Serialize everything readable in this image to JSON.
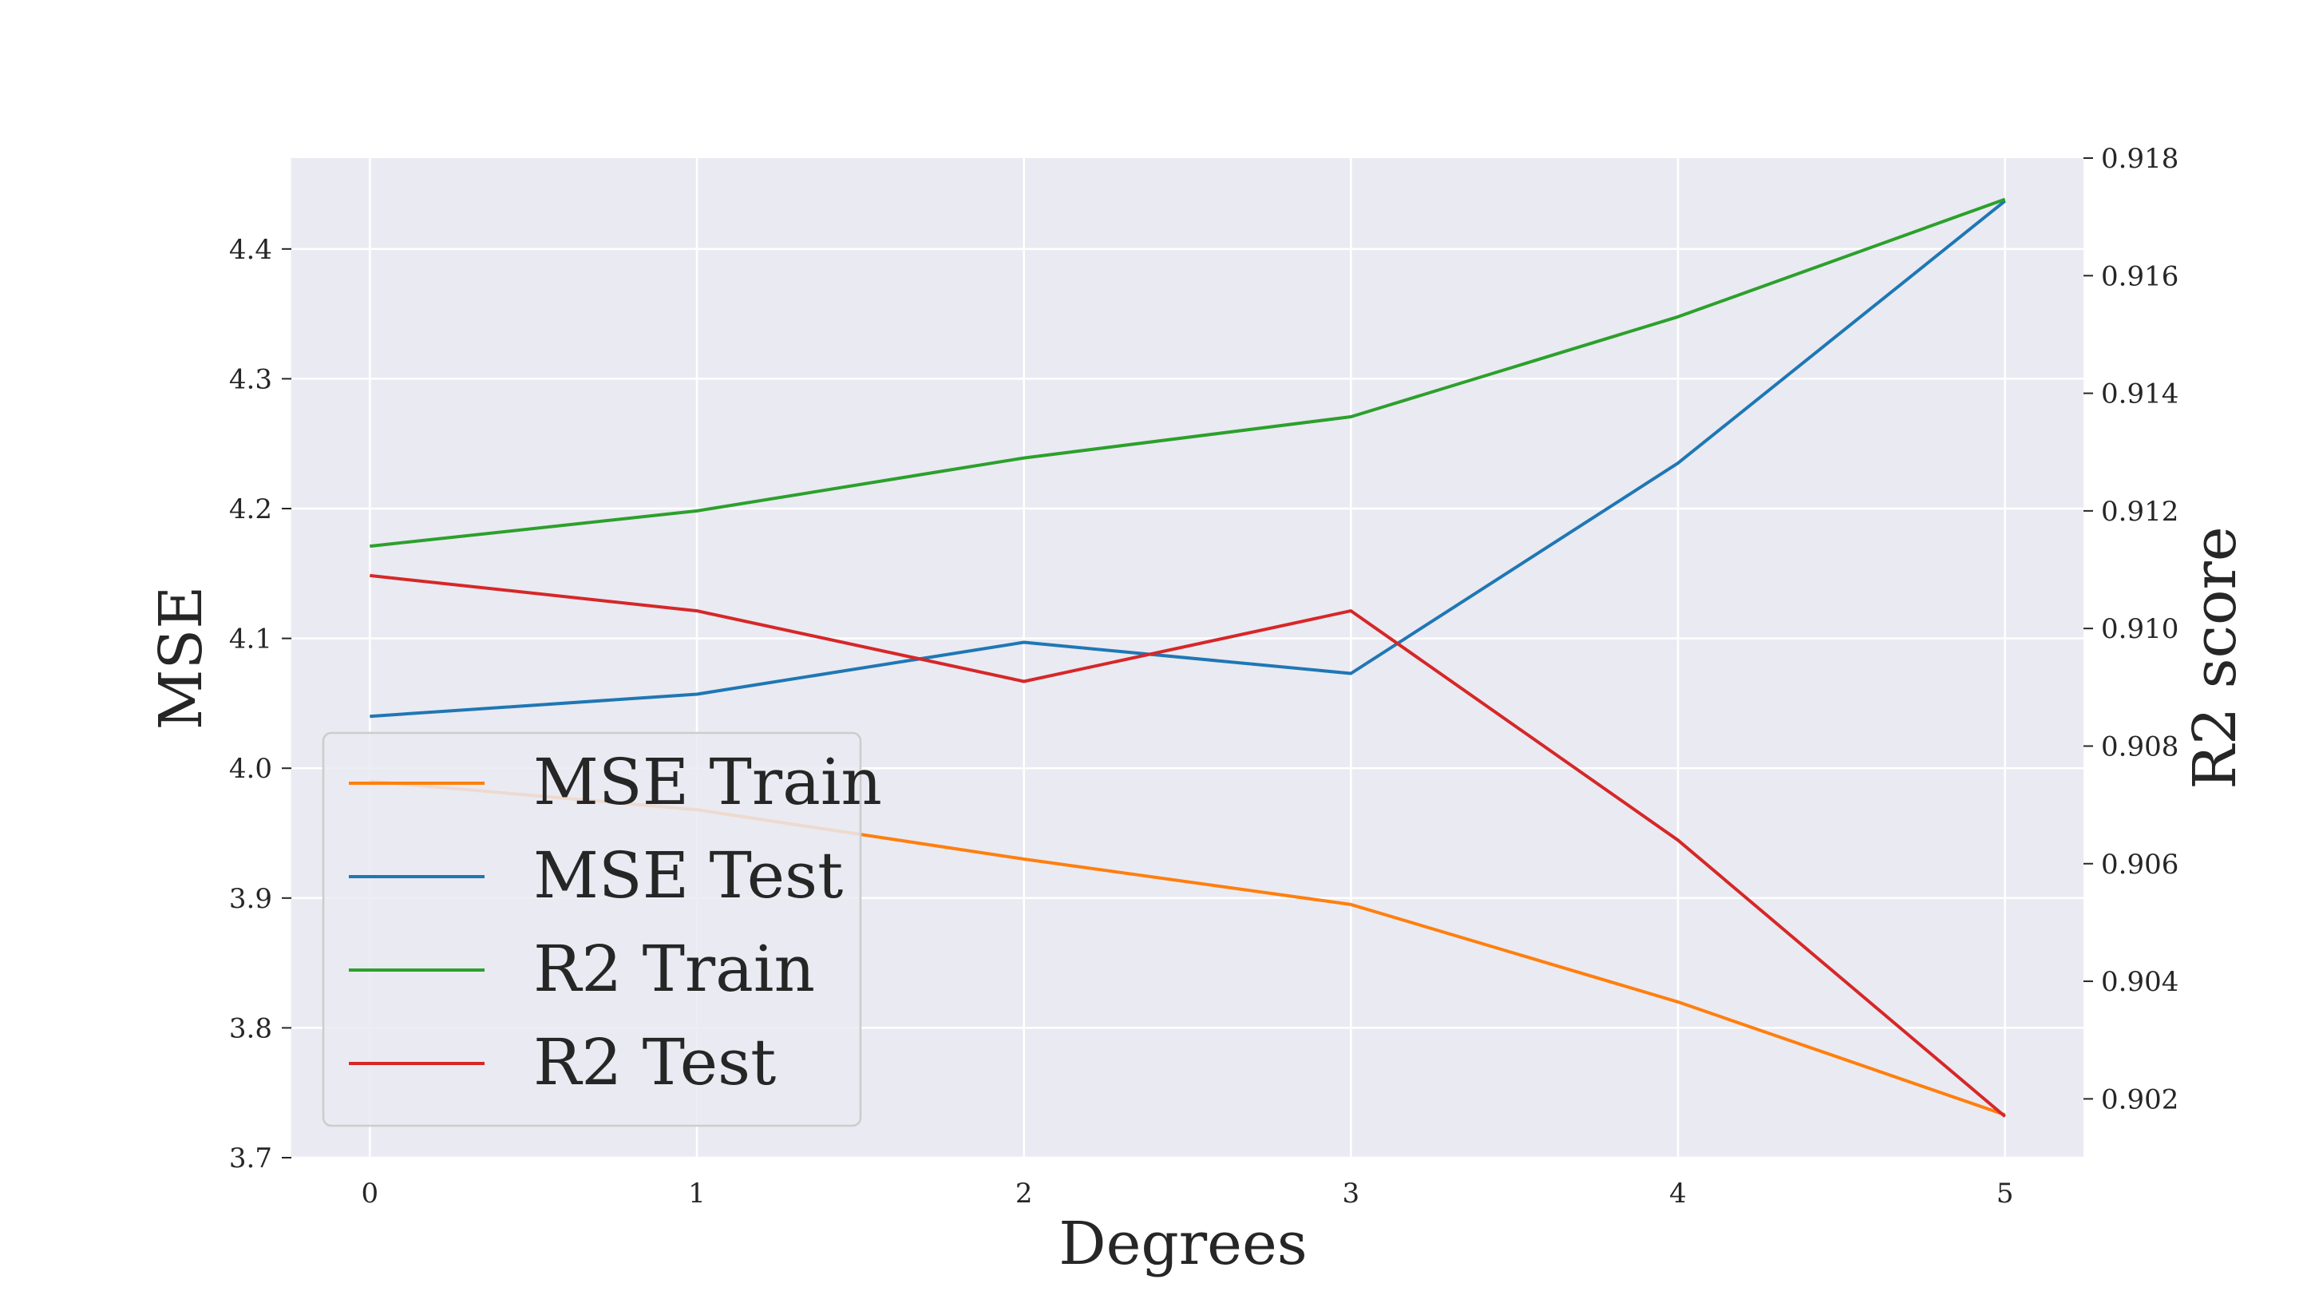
{
  "chart_data": {
    "type": "line",
    "title": "",
    "xlabel": "Degrees",
    "ylabel": "MSE",
    "ylabel_right": "R2 score",
    "x": [
      0,
      1,
      2,
      3,
      4,
      5
    ],
    "xticks": [
      "0",
      "1",
      "2",
      "3",
      "4",
      "5"
    ],
    "xlim": [
      -0.24,
      5.24
    ],
    "ylim_left": [
      3.7,
      4.47
    ],
    "ylim_right": [
      0.901,
      0.918
    ],
    "yticks_left": [
      "3.7",
      "3.8",
      "3.9",
      "4.0",
      "4.1",
      "4.2",
      "4.3",
      "4.4"
    ],
    "yticks_right": [
      "0.902",
      "0.904",
      "0.906",
      "0.908",
      "0.910",
      "0.912",
      "0.914",
      "0.916",
      "0.918"
    ],
    "grid": true,
    "legend_position": "lower-left",
    "series": [
      {
        "name": "MSE Train",
        "axis": "left",
        "color": "#ff7f0e",
        "values": [
          3.99,
          3.968,
          3.93,
          3.895,
          3.82,
          3.733
        ]
      },
      {
        "name": "MSE Test",
        "axis": "left",
        "color": "#1f77b4",
        "values": [
          4.04,
          4.057,
          4.097,
          4.073,
          4.235,
          4.437
        ]
      },
      {
        "name": "R2 Train",
        "axis": "right",
        "color": "#2ca02c",
        "values": [
          0.9114,
          0.912,
          0.9129,
          0.9136,
          0.9153,
          0.9173
        ]
      },
      {
        "name": "R2 Test",
        "axis": "right",
        "color": "#d62728",
        "values": [
          0.9109,
          0.9103,
          0.9091,
          0.9103,
          0.9064,
          0.9017
        ]
      }
    ]
  }
}
